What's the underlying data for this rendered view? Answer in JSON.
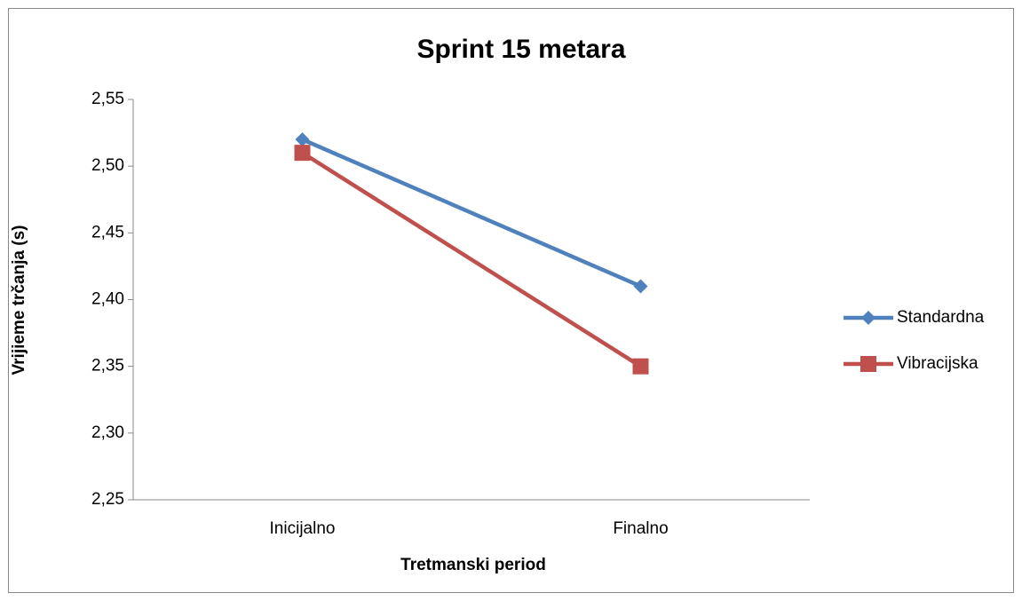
{
  "chart_data": {
    "type": "line",
    "title": "Sprint 15 metara",
    "x_label": "Tretmanski period",
    "y_label": "Vrijieme trčanja (s)",
    "categories": [
      "Inicijalno",
      "Finalno"
    ],
    "series": [
      {
        "name": "Standardna",
        "color": "#4f81bd",
        "marker": "diamond",
        "values": [
          2.52,
          2.41
        ]
      },
      {
        "name": "Vibracijska",
        "color": "#c0504d",
        "marker": "square",
        "values": [
          2.51,
          2.35
        ]
      }
    ],
    "ylim": [
      2.25,
      2.55
    ],
    "yticks": [
      {
        "value": 2.25,
        "label": "2,25"
      },
      {
        "value": 2.3,
        "label": "2,30"
      },
      {
        "value": 2.35,
        "label": "2,35"
      },
      {
        "value": 2.4,
        "label": "2,40"
      },
      {
        "value": 2.45,
        "label": "2,45"
      },
      {
        "value": 2.5,
        "label": "2,50"
      },
      {
        "value": 2.55,
        "label": "2,55"
      }
    ],
    "grid": false,
    "legend": "right"
  }
}
